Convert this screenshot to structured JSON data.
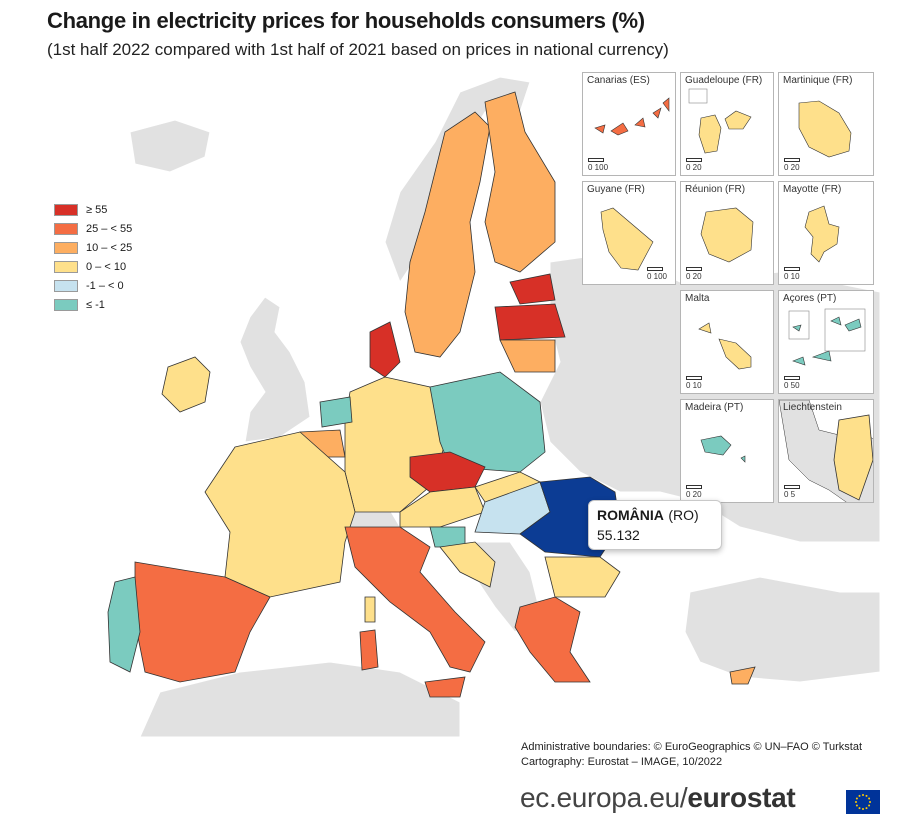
{
  "title": "Change in electricity prices for households consumers (%)",
  "subtitle": "(1st half 2022 compared with 1st half of 2021 based on prices in national currency)",
  "colors": {
    "c55": "#d73027",
    "c25": "#f46d43",
    "c10": "#fdae61",
    "c0": "#fee08b",
    "cm1": "#c6e2ef",
    "clm1": "#7bcbbf",
    "nodata": "#e1e1e1",
    "sea": "#ffffff",
    "selected": "#0c3c94"
  },
  "legend": [
    {
      "label": "≥ 55",
      "color_key": "c55"
    },
    {
      "label": "25 – < 55",
      "color_key": "c25"
    },
    {
      "label": "10 – < 25",
      "color_key": "c10"
    },
    {
      "label": "0 – < 10",
      "color_key": "c0"
    },
    {
      "label": "-1 – < 0",
      "color_key": "cm1"
    },
    {
      "label": "≤ -1",
      "color_key": "clm1"
    }
  ],
  "insets": [
    {
      "title": "Canarias (ES)",
      "scale": [
        "0",
        "100"
      ]
    },
    {
      "title": "Guadeloupe (FR)",
      "scale": [
        "0",
        "20"
      ]
    },
    {
      "title": "Martinique (FR)",
      "scale": [
        "0",
        "20"
      ]
    },
    {
      "title": "Guyane (FR)",
      "scale": [
        "0",
        "100"
      ]
    },
    {
      "title": "Réunion (FR)",
      "scale": [
        "0",
        "20"
      ]
    },
    {
      "title": "Mayotte (FR)",
      "scale": [
        "0",
        "10"
      ]
    },
    {
      "title": "Malta",
      "scale": [
        "0",
        "10"
      ]
    },
    {
      "title": "Açores (PT)",
      "scale": [
        "0",
        "50"
      ]
    },
    {
      "title": "Madeira (PT)",
      "scale": [
        "0",
        "20"
      ]
    },
    {
      "title": "Liechtenstein",
      "scale": [
        "0",
        "5"
      ]
    }
  ],
  "tooltip": {
    "name": "ROMÂNIA",
    "code": "(RO)",
    "value": "55.132"
  },
  "credits": {
    "line1": "Administrative boundaries: © EuroGeographics © UN–FAO © Turkstat",
    "line2": "Cartography: Eurostat – IMAGE, 10/2022"
  },
  "brand": {
    "prefix": "ec.europa.eu/",
    "name": "eurostat"
  }
}
